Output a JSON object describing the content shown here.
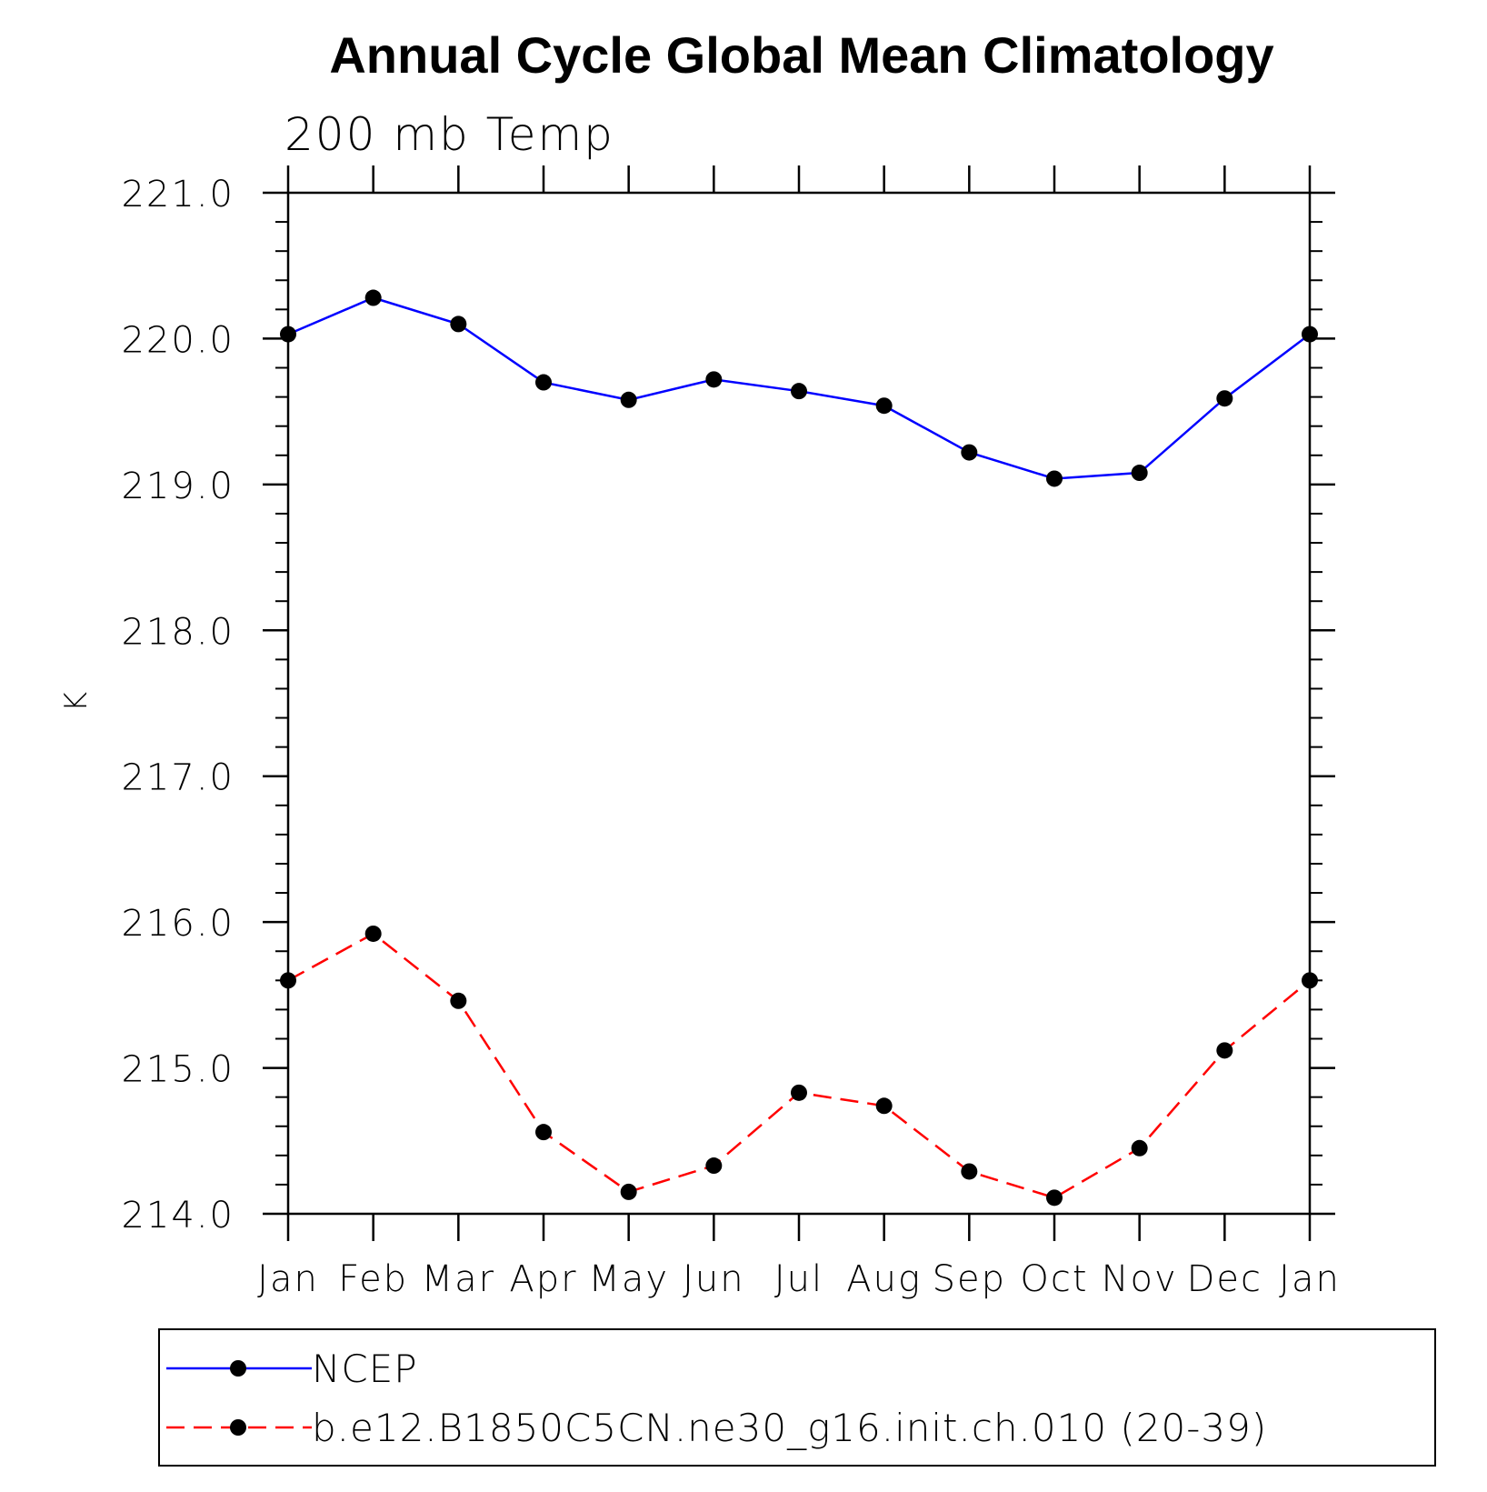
{
  "chart_data": {
    "type": "line",
    "title": "Annual Cycle Global Mean Climatology",
    "subtitle": "200 mb Temp",
    "xlabel": "",
    "ylabel": "K",
    "categories": [
      "Jan",
      "Feb",
      "Mar",
      "Apr",
      "May",
      "Jun",
      "Jul",
      "Aug",
      "Sep",
      "Oct",
      "Nov",
      "Dec",
      "Jan"
    ],
    "ylim": [
      214.0,
      221.0
    ],
    "yticks": [
      "214.0",
      "215.0",
      "216.0",
      "217.0",
      "218.0",
      "219.0",
      "220.0",
      "221.0"
    ],
    "series": [
      {
        "name": "NCEP",
        "color": "#0000ff",
        "dash": "solid",
        "marker": "filled-circle",
        "values": [
          220.03,
          220.28,
          220.1,
          219.7,
          219.58,
          219.72,
          219.64,
          219.54,
          219.22,
          219.04,
          219.08,
          219.59,
          220.03
        ]
      },
      {
        "name": "b.e12.B1850C5CN.ne30_g16.init.ch.010 (20-39)",
        "color": "#ff0000",
        "dash": "dashed",
        "marker": "filled-circle",
        "values": [
          215.6,
          215.92,
          215.46,
          214.56,
          214.15,
          214.33,
          214.83,
          214.74,
          214.29,
          214.11,
          214.45,
          215.12,
          215.6
        ]
      }
    ],
    "legend_position": "bottom",
    "grid": false
  }
}
